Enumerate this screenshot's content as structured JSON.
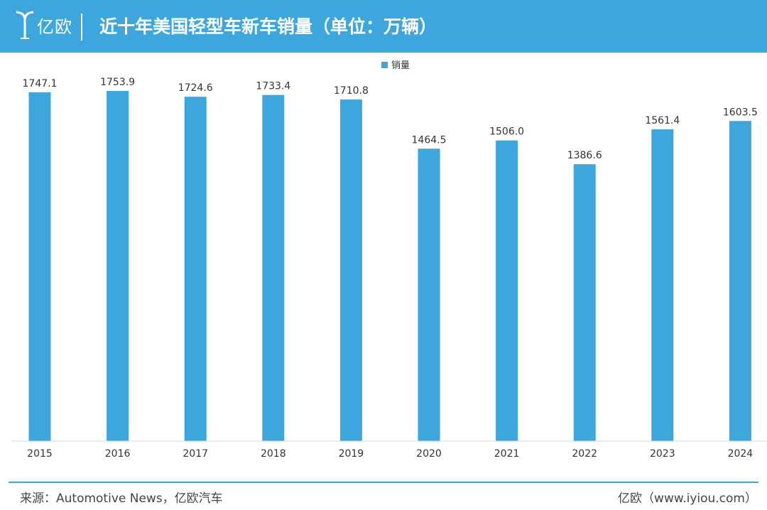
{
  "header": {
    "logo_text": "亿欧",
    "title": "近十年美国轻型车新车销量（单位：万辆）"
  },
  "footer": {
    "source": "来源：Automotive News，亿欧汽车",
    "brand": "亿欧（www.iyiou.com）"
  },
  "colors": {
    "accent": "#3da6dc",
    "bar": "#3da6dc",
    "label": "#333333"
  },
  "chart_data": {
    "type": "bar",
    "categories": [
      "2015",
      "2016",
      "2017",
      "2018",
      "2019",
      "2020",
      "2021",
      "2022",
      "2023",
      "2024"
    ],
    "series": [
      {
        "name": "销量",
        "values": [
          1747.1,
          1753.9,
          1724.6,
          1733.4,
          1710.8,
          1464.5,
          1506.0,
          1386.6,
          1561.4,
          1603.5
        ]
      }
    ],
    "value_labels": [
      "1747.1",
      "1753.9",
      "1724.6",
      "1733.4",
      "1710.8",
      "1464.5",
      "1506.0",
      "1386.6",
      "1561.4",
      "1603.5"
    ],
    "ylim": [
      0,
      1800
    ],
    "grid": false,
    "legend": "top-center"
  }
}
